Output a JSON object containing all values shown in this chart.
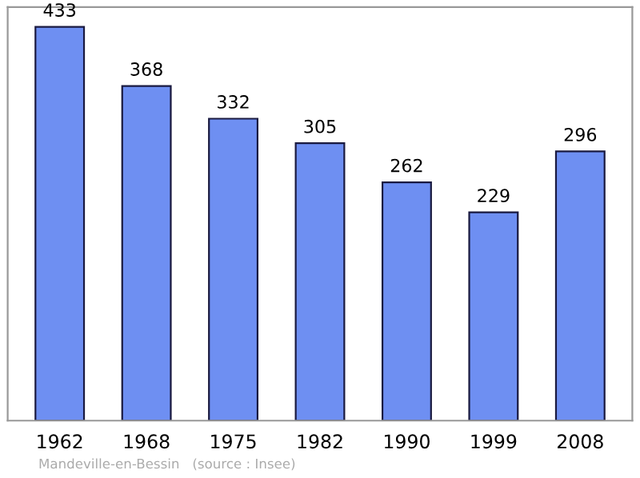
{
  "chart_data": {
    "type": "bar",
    "categories": [
      "1962",
      "1968",
      "1975",
      "1982",
      "1990",
      "1999",
      "2008"
    ],
    "values": [
      433,
      368,
      332,
      305,
      262,
      229,
      296
    ],
    "color": "#6e8ff2",
    "data_labels": true,
    "grid": false,
    "legend": false,
    "annotations": [
      "Mandeville-en-Bessin   (source : Insee)"
    ]
  }
}
